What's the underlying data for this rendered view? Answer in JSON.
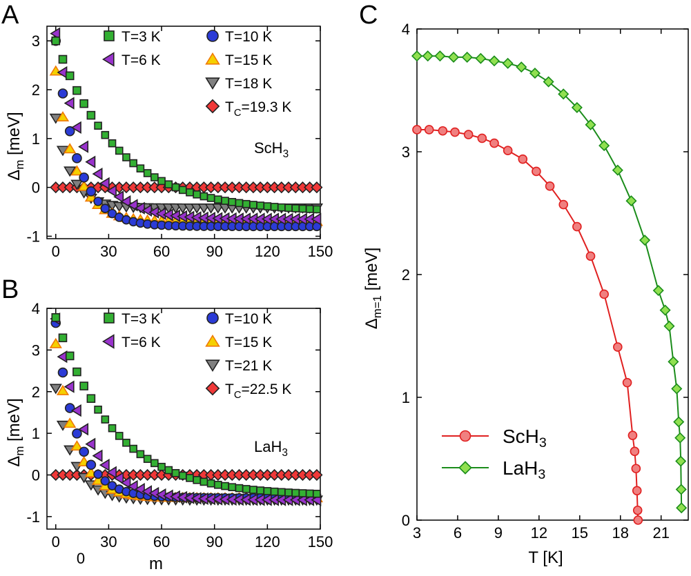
{
  "colors": {
    "T3": "#33b033",
    "T6": "#9933cc",
    "T10": "#2b3bd6",
    "T15": "#f5d000",
    "T15_edge": "#f07800",
    "Tlast": "#808080",
    "Tc": "#f03838",
    "ScH3_line": "#e02020",
    "ScH3_fill": "#f08080",
    "LaH3_line": "#1a8c1a",
    "LaH3_fill": "#90e050"
  },
  "panels": {
    "A": {
      "letter": "A"
    },
    "B": {
      "letter": "B"
    },
    "C": {
      "letter": "C"
    }
  },
  "chart_data": [
    {
      "id": "A",
      "type": "scatter",
      "sample": "ScH",
      "sample_sub": "3",
      "xlabel": "m",
      "show_xlabel": false,
      "ylabel": "Δ",
      "ylabel_sub": "m",
      "ylabel_unit": " [meV]",
      "xlim": [
        -5,
        150
      ],
      "ylim": [
        -1.05,
        3.3
      ],
      "xticks": [
        0,
        30,
        60,
        90,
        120,
        150
      ],
      "yticks": [
        -1,
        0,
        1,
        2,
        3
      ],
      "legend_position": "top-right",
      "series": [
        {
          "name": "T=3 K",
          "marker": "square",
          "color_key": "T3",
          "size": 11,
          "A": 3.0,
          "tau": 35,
          "base": -0.5
        },
        {
          "name": "T=6 K",
          "marker": "triangle-left",
          "color_key": "T6",
          "size": 14,
          "A": 3.15,
          "tau": 17,
          "base": -0.65
        },
        {
          "name": "T=10 K",
          "marker": "circle",
          "color_key": "T10",
          "size": 13,
          "A": 3.0,
          "tau": 12,
          "base": -0.8
        },
        {
          "name": "T=15 K",
          "marker": "triangle-up",
          "color_key": "T15",
          "edge_key": "T15_edge",
          "size": 14,
          "A": 2.38,
          "tau": 11,
          "base": -0.7
        },
        {
          "name": "T=18 K",
          "marker": "triangle-down",
          "color_key": "Tlast",
          "size": 14,
          "A": 1.42,
          "tau": 9,
          "base": -0.42
        },
        {
          "name": "T",
          "name_sub": "C",
          "name_rest": "=19.3 K",
          "marker": "diamond",
          "color_key": "Tc",
          "size": 13,
          "A": 0,
          "tau": 10,
          "base": 0
        }
      ]
    },
    {
      "id": "B",
      "type": "scatter",
      "sample": "LaH",
      "sample_sub": "3",
      "xlabel": "m",
      "show_xlabel": true,
      "extra_tick": "0",
      "ylabel": "Δ",
      "ylabel_sub": "m",
      "ylabel_unit": " [meV]",
      "xlim": [
        -5,
        150
      ],
      "ylim": [
        -1.3,
        4.0
      ],
      "xticks": [
        0,
        30,
        60,
        90,
        120,
        150
      ],
      "yticks": [
        -1,
        0,
        1,
        2,
        3,
        4
      ],
      "legend_position": "top-right",
      "series": [
        {
          "name": "T=3 K",
          "marker": "square",
          "color_key": "T3",
          "size": 11,
          "A": 3.78,
          "tau": 33,
          "base": -0.5
        },
        {
          "name": "T=6 K",
          "marker": "triangle-left",
          "color_key": "T6",
          "size": 14,
          "A": 3.75,
          "tau": 17,
          "base": -0.6
        },
        {
          "name": "T=10 K",
          "marker": "circle",
          "color_key": "T10",
          "size": 13,
          "A": 3.65,
          "tau": 12,
          "base": -0.55
        },
        {
          "name": "T=15 K",
          "marker": "triangle-up",
          "color_key": "T15",
          "edge_key": "T15_edge",
          "size": 14,
          "A": 3.15,
          "tau": 11,
          "base": -0.55
        },
        {
          "name": "T=21 K",
          "marker": "triangle-down",
          "color_key": "Tlast",
          "size": 14,
          "A": 2.08,
          "tau": 10,
          "base": -0.6
        },
        {
          "name": "T",
          "name_sub": "C",
          "name_rest": "=22.5 K",
          "marker": "diamond",
          "color_key": "Tc",
          "size": 13,
          "A": 0,
          "tau": 10,
          "base": 0
        }
      ]
    },
    {
      "id": "C",
      "type": "line",
      "xlabel": "T [K]",
      "ylabel": "Δ",
      "ylabel_sub": "m=1",
      "ylabel_unit": " [meV]",
      "xlim": [
        3,
        23
      ],
      "ylim": [
        0,
        4
      ],
      "xticks": [
        3,
        6,
        9,
        12,
        15,
        18,
        21
      ],
      "yticks": [
        0,
        1,
        2,
        3,
        4
      ],
      "legend_position": "bottom-left",
      "series": [
        {
          "name": "ScH",
          "name_sub": "3",
          "marker": "circle",
          "line_key": "ScH3_line",
          "fill_key": "ScH3_fill",
          "x": [
            3.0,
            3.9,
            4.9,
            5.8,
            6.8,
            7.8,
            8.7,
            9.7,
            10.8,
            11.8,
            12.8,
            13.8,
            14.8,
            15.8,
            16.8,
            17.8,
            18.5,
            18.9,
            19.05,
            19.15,
            19.22,
            19.27,
            19.3
          ],
          "y": [
            3.18,
            3.18,
            3.17,
            3.16,
            3.14,
            3.11,
            3.07,
            3.01,
            2.94,
            2.84,
            2.72,
            2.57,
            2.39,
            2.15,
            1.84,
            1.41,
            1.12,
            0.69,
            0.56,
            0.42,
            0.24,
            0.08,
            0.0
          ]
        },
        {
          "name": "LaH",
          "name_sub": "3",
          "marker": "diamond",
          "line_key": "LaH3_line",
          "fill_key": "LaH3_fill",
          "x": [
            3.0,
            3.8,
            4.7,
            5.7,
            6.7,
            7.7,
            8.7,
            9.7,
            10.7,
            11.7,
            12.7,
            13.8,
            14.8,
            15.8,
            16.8,
            17.8,
            18.8,
            19.8,
            20.8,
            21.3,
            21.6,
            21.9,
            22.15,
            22.3,
            22.4,
            22.45,
            22.48,
            22.5
          ],
          "y": [
            3.78,
            3.78,
            3.78,
            3.77,
            3.77,
            3.76,
            3.74,
            3.72,
            3.69,
            3.64,
            3.57,
            3.47,
            3.36,
            3.22,
            3.05,
            2.85,
            2.6,
            2.28,
            1.87,
            1.71,
            1.58,
            1.29,
            1.07,
            0.8,
            0.67,
            0.48,
            0.25,
            0.1
          ]
        }
      ]
    }
  ]
}
